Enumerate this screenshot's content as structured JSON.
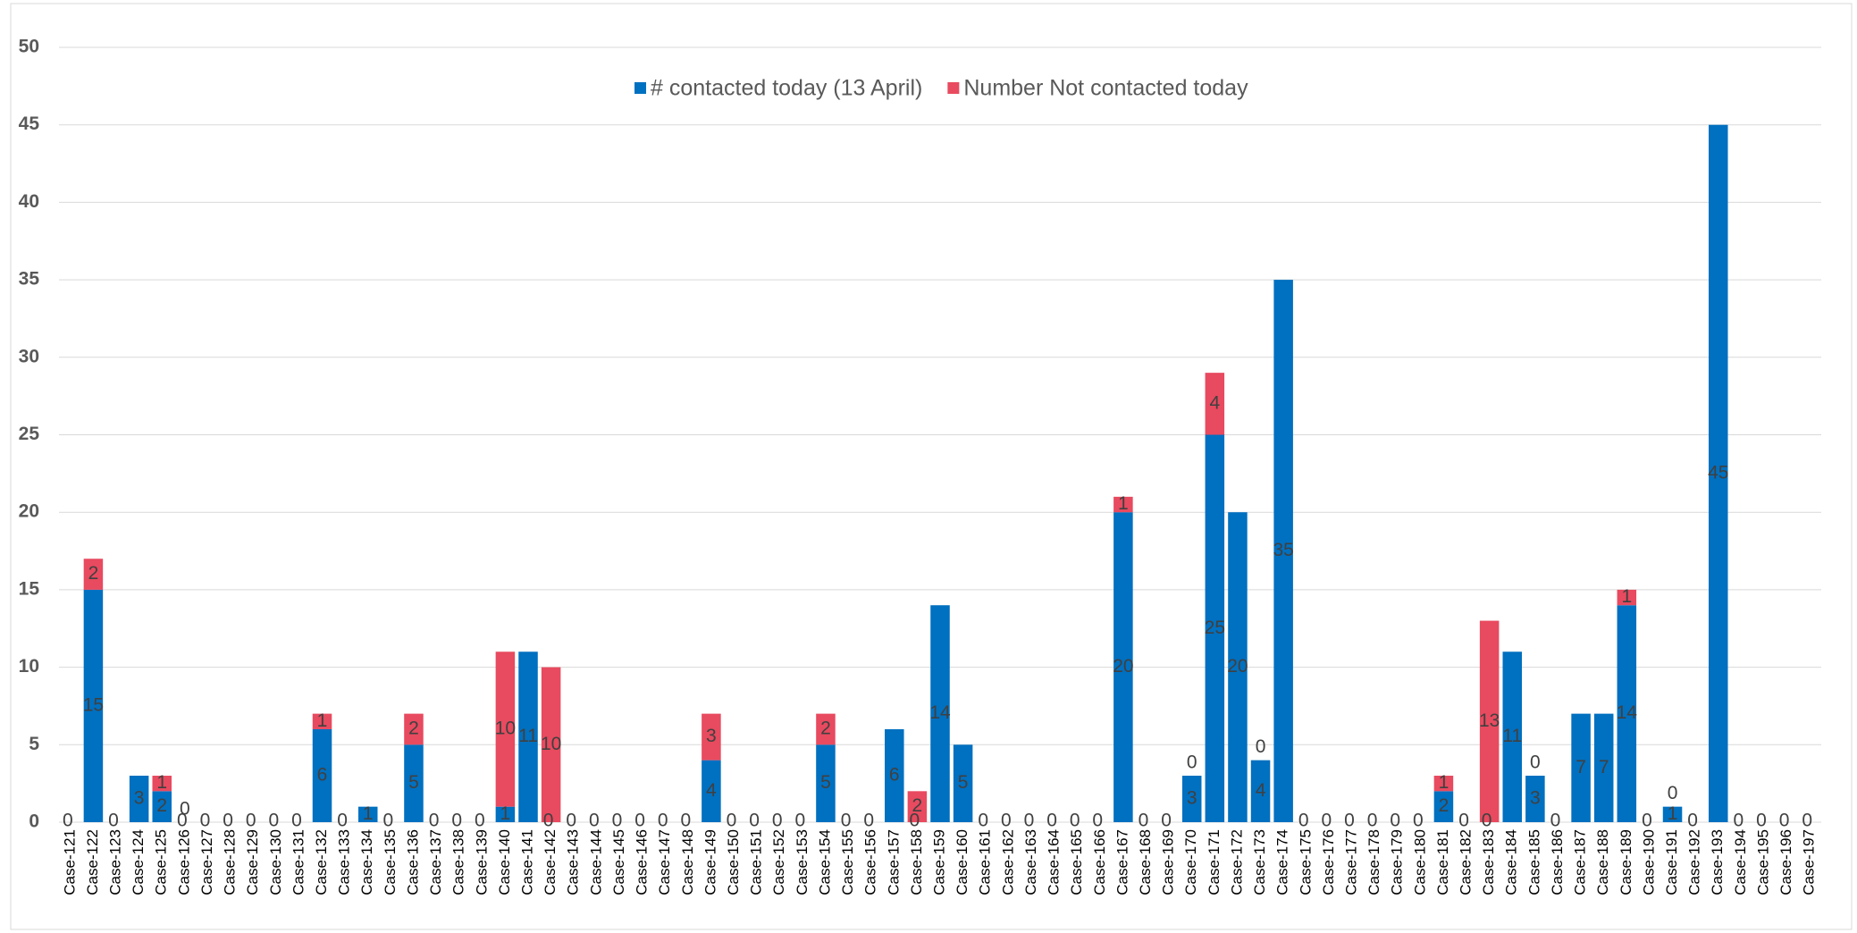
{
  "chart_data": {
    "type": "stacked_bar",
    "categories": [
      "Case-121",
      "Case-122",
      "Case-123",
      "Case-124",
      "Case-125",
      "Case-126",
      "Case-127",
      "Case-128",
      "Case-129",
      "Case-130",
      "Case-131",
      "Case-132",
      "Case-133",
      "Case-134",
      "Case-135",
      "Case-136",
      "Case-137",
      "Case-138",
      "Case-139",
      "Case-140",
      "Case-141",
      "Case-142",
      "Case-143",
      "Case-144",
      "Case-145",
      "Case-146",
      "Case-147",
      "Case-148",
      "Case-149",
      "Case-150",
      "Case-151",
      "Case-152",
      "Case-153",
      "Case-154",
      "Case-155",
      "Case-156",
      "Case-157",
      "Case-158",
      "Case-159",
      "Case-160",
      "Case-161",
      "Case-162",
      "Case-163",
      "Case-164",
      "Case-165",
      "Case-166",
      "Case-167",
      "Case-168",
      "Case-169",
      "Case-170",
      "Case-171",
      "Case-172",
      "Case-173",
      "Case-174",
      "Case-175",
      "Case-176",
      "Case-177",
      "Case-178",
      "Case-179",
      "Case-180",
      "Case-181",
      "Case-182",
      "Case-183",
      "Case-184",
      "Case-185",
      "Case-186",
      "Case-187",
      "Case-188",
      "Case-189",
      "Case-190",
      "Case-191",
      "Case-192",
      "Case-193",
      "Case-194",
      "Case-195",
      "Case-196",
      "Case-197"
    ],
    "series": [
      {
        "name": "# contacted today (13 April)",
        "color": "#0070c0",
        "values": [
          0,
          15,
          0,
          3,
          2,
          0,
          0,
          0,
          0,
          0,
          0,
          6,
          0,
          1,
          0,
          5,
          0,
          0,
          0,
          1,
          11,
          0,
          0,
          0,
          0,
          0,
          0,
          0,
          4,
          0,
          0,
          0,
          0,
          5,
          0,
          0,
          6,
          0,
          14,
          5,
          0,
          0,
          0,
          0,
          0,
          0,
          20,
          0,
          0,
          3,
          25,
          20,
          4,
          35,
          0,
          0,
          0,
          0,
          0,
          0,
          2,
          0,
          0,
          11,
          3,
          0,
          7,
          7,
          14,
          0,
          1,
          0,
          45,
          0,
          0,
          0,
          0
        ]
      },
      {
        "name": "Number Not contacted today",
        "color": "#e84a5f",
        "values": [
          null,
          2,
          null,
          null,
          1,
          0,
          null,
          null,
          null,
          null,
          null,
          1,
          null,
          null,
          null,
          2,
          null,
          null,
          null,
          10,
          null,
          10,
          null,
          null,
          null,
          null,
          null,
          null,
          3,
          null,
          null,
          null,
          null,
          2,
          null,
          null,
          null,
          2,
          null,
          null,
          null,
          null,
          null,
          null,
          null,
          null,
          1,
          null,
          null,
          0,
          4,
          null,
          0,
          null,
          null,
          null,
          null,
          null,
          null,
          null,
          1,
          null,
          13,
          null,
          0,
          null,
          null,
          null,
          1,
          null,
          0,
          null,
          null,
          null,
          null,
          null,
          null
        ]
      }
    ],
    "ylim": [
      0,
      50
    ],
    "yticks": [
      0,
      5,
      10,
      15,
      20,
      25,
      30,
      35,
      40,
      45,
      50
    ],
    "grid": true,
    "legend": "top"
  }
}
